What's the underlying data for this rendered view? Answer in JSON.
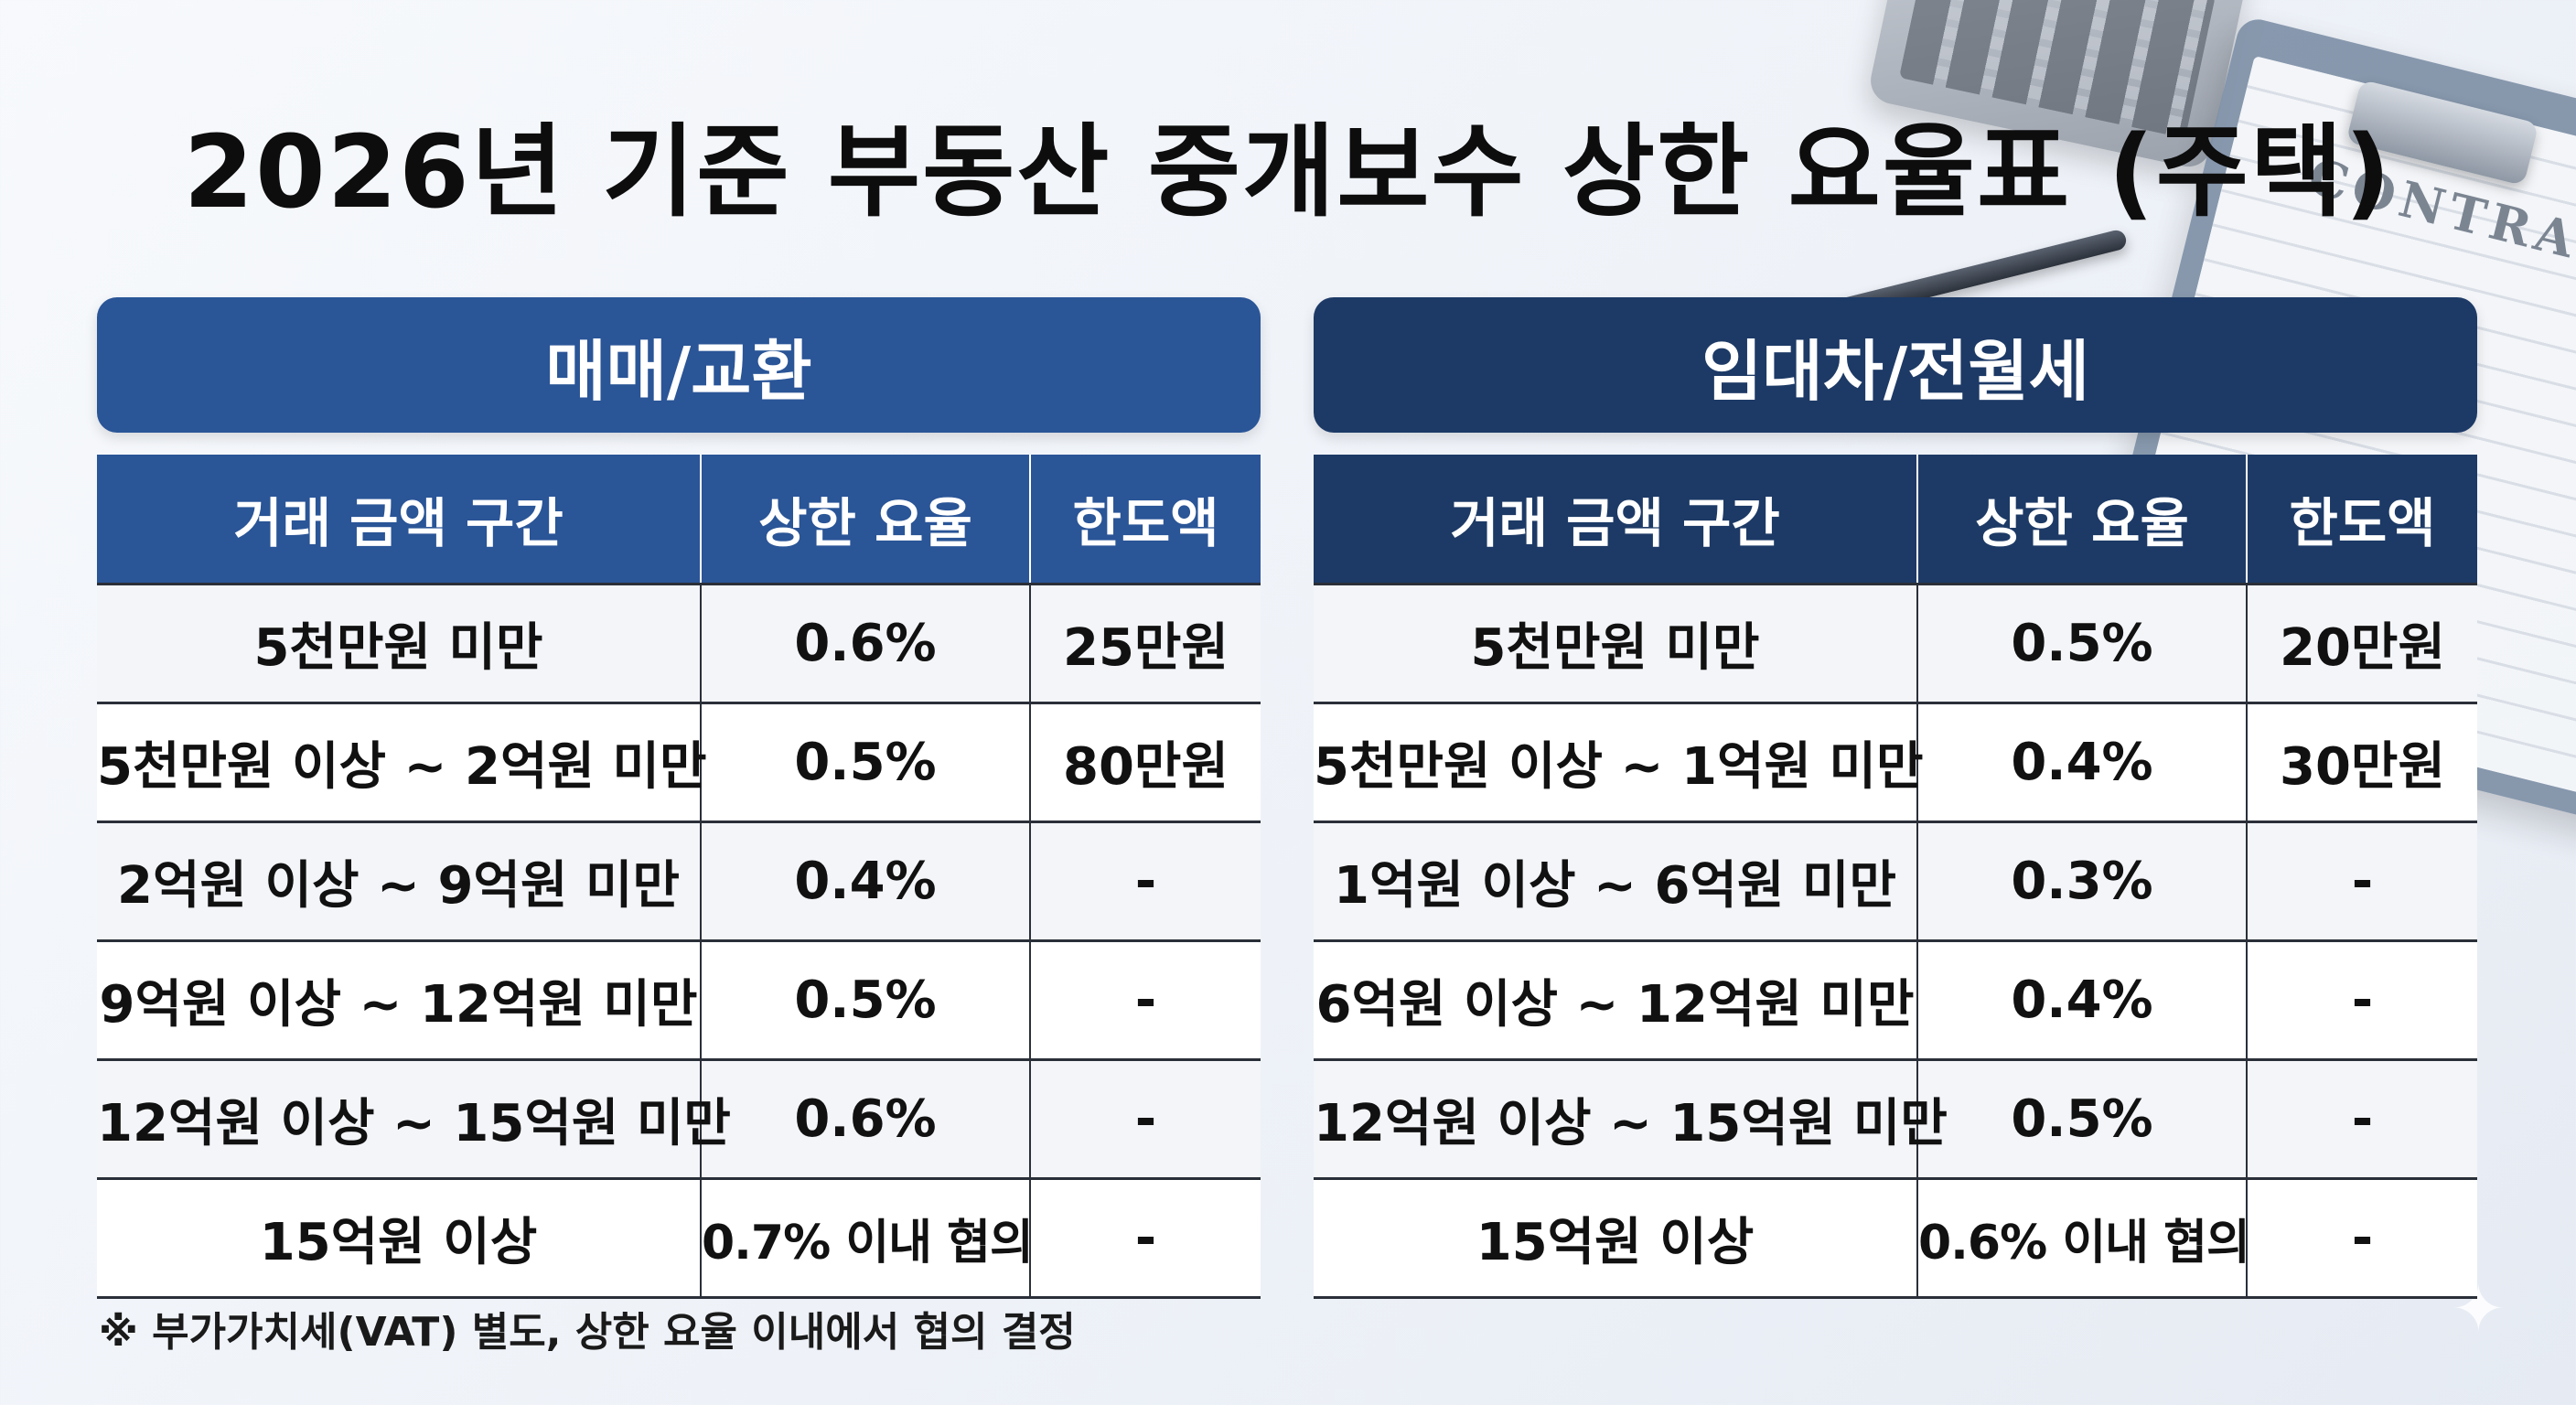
{
  "title": "2026년 기준 부동산 중개보수 상한 요율표 (주택)",
  "background": {
    "paper_title": "CONTRAC"
  },
  "columns": [
    "거래 금액 구간",
    "상한 요율",
    "한도액"
  ],
  "sale": {
    "header": "매매/교환",
    "color": "#2a5597",
    "rows": [
      {
        "range": "5천만원 미만",
        "rate": "0.6%",
        "limit": "25만원"
      },
      {
        "range": "5천만원 이상 ~ 2억원 미만",
        "rate": "0.5%",
        "limit": "80만원"
      },
      {
        "range": "2억원 이상 ~ 9억원 미만",
        "rate": "0.4%",
        "limit": "-"
      },
      {
        "range": "9억원 이상 ~ 12억원 미만",
        "rate": "0.5%",
        "limit": "-"
      },
      {
        "range": "12억원 이상 ~ 15억원 미만",
        "rate": "0.6%",
        "limit": "-"
      },
      {
        "range": "15억원 이상",
        "rate": "0.7% 이내 협의",
        "limit": "-"
      }
    ]
  },
  "lease": {
    "header": "임대차/전월세",
    "color": "#1d3a66",
    "rows": [
      {
        "range": "5천만원 미만",
        "rate": "0.5%",
        "limit": "20만원"
      },
      {
        "range": "5천만원 이상 ~ 1억원 미만",
        "rate": "0.4%",
        "limit": "30만원"
      },
      {
        "range": "1억원 이상 ~ 6억원 미만",
        "rate": "0.3%",
        "limit": "-"
      },
      {
        "range": "6억원 이상 ~ 12억원 미만",
        "rate": "0.4%",
        "limit": "-"
      },
      {
        "range": "12억원 이상 ~ 15억원 미만",
        "rate": "0.5%",
        "limit": "-"
      },
      {
        "range": "15억원 이상",
        "rate": "0.6% 이내 협의",
        "limit": "-"
      }
    ]
  },
  "footnote": "※ 부가가치세(VAT) 별도, 상한 요율 이내에서 협의 결정"
}
